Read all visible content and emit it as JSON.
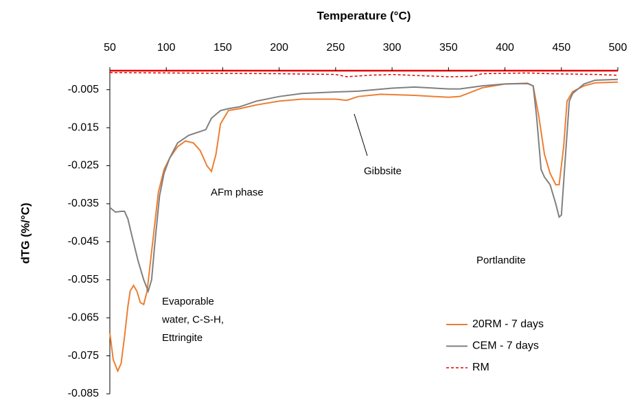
{
  "chart_data": {
    "type": "line",
    "x_label": "Temperature (°C)",
    "y_label": "dTG (%/°C)",
    "xlim": [
      50,
      500
    ],
    "xticks": [
      50,
      100,
      150,
      200,
      250,
      300,
      350,
      400,
      450,
      500
    ],
    "ylim": [
      -0.085,
      0
    ],
    "yticks": [
      -0.005,
      -0.015,
      -0.025,
      -0.035,
      -0.045,
      -0.055,
      -0.065,
      -0.075,
      -0.085
    ],
    "legend_position": "lower right",
    "series": [
      {
        "name": "20RM - 7 days",
        "color": "#ed7d31",
        "dash": "solid",
        "x": [
          50,
          53,
          57,
          60,
          63,
          66,
          68,
          71,
          74,
          77,
          80,
          83,
          88,
          93,
          98,
          103,
          110,
          117,
          124,
          130,
          136,
          140,
          144,
          148,
          155,
          165,
          180,
          200,
          220,
          250,
          260,
          270,
          290,
          320,
          350,
          360,
          380,
          400,
          420,
          425,
          430,
          435,
          440,
          445,
          448,
          452,
          455,
          460,
          470,
          480,
          500
        ],
        "values": [
          -0.069,
          -0.076,
          -0.079,
          -0.077,
          -0.07,
          -0.062,
          -0.058,
          -0.0565,
          -0.058,
          -0.061,
          -0.0615,
          -0.058,
          -0.045,
          -0.032,
          -0.026,
          -0.023,
          -0.02,
          -0.0185,
          -0.019,
          -0.021,
          -0.025,
          -0.0265,
          -0.022,
          -0.014,
          -0.0105,
          -0.01,
          -0.009,
          -0.008,
          -0.0075,
          -0.0075,
          -0.0078,
          -0.0068,
          -0.0062,
          -0.0065,
          -0.007,
          -0.0068,
          -0.0045,
          -0.0035,
          -0.0033,
          -0.004,
          -0.012,
          -0.022,
          -0.027,
          -0.03,
          -0.03,
          -0.02,
          -0.008,
          -0.0055,
          -0.004,
          -0.0032,
          -0.003
        ]
      },
      {
        "name": "CEM - 7 days",
        "color": "#7f7f7f",
        "dash": "solid",
        "x": [
          50,
          55,
          60,
          63,
          66,
          70,
          75,
          80,
          84,
          87,
          90,
          94,
          98,
          103,
          110,
          120,
          130,
          135,
          140,
          148,
          155,
          165,
          180,
          200,
          220,
          250,
          270,
          300,
          320,
          350,
          360,
          380,
          400,
          420,
          425,
          428,
          432,
          435,
          440,
          445,
          448,
          450,
          453,
          457,
          460,
          470,
          480,
          500
        ],
        "values": [
          -0.036,
          -0.0372,
          -0.037,
          -0.037,
          -0.039,
          -0.044,
          -0.05,
          -0.055,
          -0.058,
          -0.055,
          -0.045,
          -0.033,
          -0.027,
          -0.023,
          -0.019,
          -0.017,
          -0.016,
          -0.0155,
          -0.0125,
          -0.0105,
          -0.01,
          -0.0095,
          -0.008,
          -0.0068,
          -0.006,
          -0.0056,
          -0.0054,
          -0.0046,
          -0.0043,
          -0.0048,
          -0.0048,
          -0.004,
          -0.0035,
          -0.0034,
          -0.004,
          -0.012,
          -0.026,
          -0.028,
          -0.03,
          -0.035,
          -0.0385,
          -0.038,
          -0.025,
          -0.008,
          -0.006,
          -0.0035,
          -0.0025,
          -0.0023
        ]
      },
      {
        "name": "RM",
        "color": "#e00000",
        "dash": "dashed",
        "x": [
          50,
          100,
          200,
          250,
          260,
          280,
          300,
          350,
          370,
          380,
          420,
          440,
          480,
          500
        ],
        "values": [
          -0.0005,
          -0.0006,
          -0.0008,
          -0.001,
          -0.0016,
          -0.0012,
          -0.001,
          -0.0016,
          -0.0015,
          -0.0008,
          -0.0006,
          -0.0008,
          -0.001,
          -0.0012
        ]
      }
    ],
    "annotations": [
      {
        "text": [
          "Evaporable",
          "water, C-S-H,",
          "Ettringite"
        ]
      },
      {
        "text": [
          "AFm phase"
        ]
      },
      {
        "text": [
          "Gibbsite"
        ]
      },
      {
        "text": [
          "Portlandite"
        ]
      }
    ]
  }
}
